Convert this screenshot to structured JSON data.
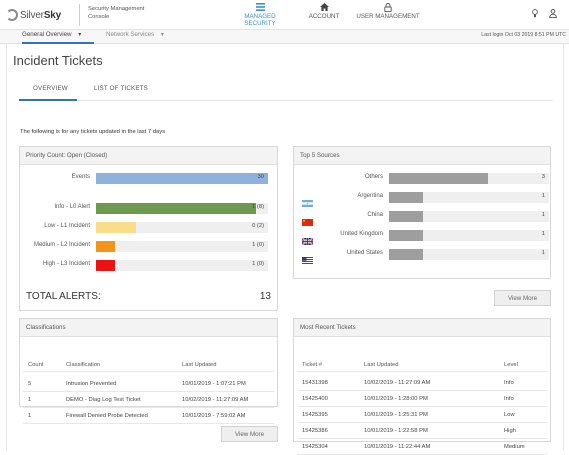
{
  "app": {
    "logo_text_1": "Silver",
    "logo_text_2": "Sky",
    "console_title": "Security Management Console"
  },
  "top_nav": {
    "items": [
      {
        "label": "MANAGED SECURITY",
        "icon": "list-icon",
        "active": true
      },
      {
        "label": "ACCOUNT",
        "icon": "home-icon",
        "active": false
      },
      {
        "label": "USER MANAGEMENT",
        "icon": "lock-icon",
        "active": false
      }
    ],
    "right_icons": [
      "lightbulb-icon",
      "user-icon"
    ]
  },
  "sub_nav": {
    "tabs": [
      {
        "label": "General Overview",
        "active": true
      },
      {
        "label": "Network Services",
        "active": false
      }
    ],
    "last_login": "Last login Oct 03 2019 8:51 PM UTC"
  },
  "page": {
    "title": "Incident Tickets",
    "tabs": [
      {
        "label": "OVERVIEW",
        "active": true
      },
      {
        "label": "LIST OF TICKETS",
        "active": false
      }
    ],
    "intro": "The following is for any tickets updated in the last 7 days"
  },
  "priority_card": {
    "title": "Priority Count: Open (Closed)",
    "rows": [
      {
        "label": "Events",
        "value_text": "30",
        "fraction": 1.0,
        "color": "#8fb2dc"
      },
      {
        "label": "Info - L0 Alert",
        "value_text": "1 (8)",
        "fraction": 0.93,
        "color": "#6e9a4f"
      },
      {
        "label": "Low - L1 Incident",
        "value_text": "0 (2)",
        "fraction": 0.23,
        "color": "#f9dd8a"
      },
      {
        "label": "Medium - L2 Incident",
        "value_text": "1 (0)",
        "fraction": 0.11,
        "color": "#f39317"
      },
      {
        "label": "High - L3 Incident",
        "value_text": "1 (0)",
        "fraction": 0.11,
        "color": "#ee1111"
      }
    ],
    "total_label": "TOTAL ALERTS:",
    "total_value": "13"
  },
  "sources_card": {
    "title": "Top 5 Sources",
    "rows": [
      {
        "label": "Others",
        "value": "3",
        "fraction": 0.62,
        "flag": null
      },
      {
        "label": "Argentina",
        "value": "1",
        "fraction": 0.21,
        "flag": "argentina-flag-icon"
      },
      {
        "label": "China",
        "value": "1",
        "fraction": 0.21,
        "flag": "china-flag-icon"
      },
      {
        "label": "United Kingdom",
        "value": "1",
        "fraction": 0.21,
        "flag": "uk-flag-icon"
      },
      {
        "label": "United States",
        "value": "1",
        "fraction": 0.21,
        "flag": "us-flag-icon"
      }
    ],
    "view_more": "View More"
  },
  "classifications_card": {
    "title": "Classifications",
    "headers": [
      "Count",
      "Classification",
      "Last Updated"
    ],
    "rows": [
      [
        "5",
        "Intrusion Prevented",
        "10/01/2019 - 1:07:21 PM"
      ],
      [
        "1",
        "DEMO - Diag Log Test Ticket",
        "10/02/2019 - 11:27:09 AM"
      ],
      [
        "1",
        "Firewall Denied Probe Detected",
        "10/01/2019 - 7:59:02 AM"
      ]
    ],
    "view_more": "View More"
  },
  "recent_card": {
    "title": "Most Recent Tickets",
    "headers": [
      "Ticket #",
      "Last Updated",
      "Level"
    ],
    "rows": [
      [
        "15431398",
        "10/02/2019 - 11:27:09 AM",
        "Info"
      ],
      [
        "15425400",
        "10/01/2019 - 1:28:00 PM",
        "Info"
      ],
      [
        "15425395",
        "10/01/2019 - 1:25:31 PM",
        "Low"
      ],
      [
        "15425386",
        "10/01/2019 - 1:22:58 PM",
        "High"
      ],
      [
        "15425304",
        "10/01/2019 - 11:22:44 AM",
        "Medium"
      ]
    ]
  }
}
